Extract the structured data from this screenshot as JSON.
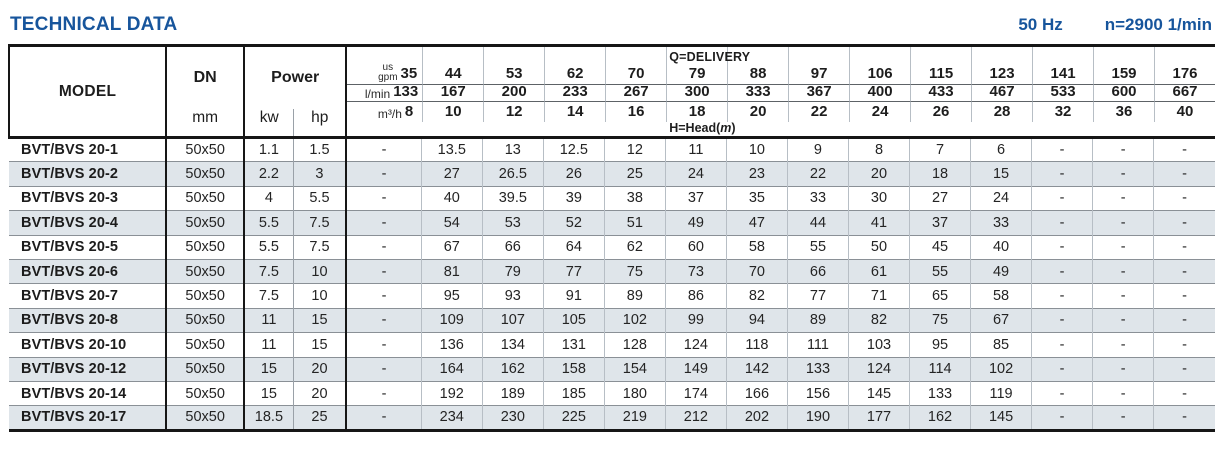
{
  "header_bar": {
    "title": "TECHNICAL DATA",
    "frequency": "50 Hz",
    "rotation_speed": "n=2900 1/min"
  },
  "colors": {
    "accent_blue": "#17559c",
    "row_alt_bg": "#dfe5ea",
    "border_dark": "#161616",
    "divider_light": "#b7bec5"
  },
  "table": {
    "column_headers": {
      "model": "MODEL",
      "dn": "DN",
      "dn_unit": "mm",
      "power": "Power",
      "power_units": [
        "kw",
        "hp"
      ],
      "delivery_label": "Q=DELIVERY",
      "head_label_prefix": "H=Head(",
      "head_label_unit": "m",
      "head_label_suffix": ")"
    },
    "delivery_units": [
      {
        "label_lines": [
          "us",
          "gpm"
        ],
        "values": [
          "35",
          "44",
          "53",
          "62",
          "70",
          "79",
          "88",
          "97",
          "106",
          "115",
          "123",
          "141",
          "159",
          "176"
        ]
      },
      {
        "label_lines": [
          "l/min"
        ],
        "values": [
          "133",
          "167",
          "200",
          "233",
          "267",
          "300",
          "333",
          "367",
          "400",
          "433",
          "467",
          "533",
          "600",
          "667"
        ]
      },
      {
        "label_lines": [
          "m³/h"
        ],
        "values": [
          "8",
          "10",
          "12",
          "14",
          "16",
          "18",
          "20",
          "22",
          "24",
          "26",
          "28",
          "32",
          "36",
          "40"
        ]
      }
    ],
    "rows": [
      {
        "model": "BVT/BVS 20-1",
        "dn": "50x50",
        "kw": "1.1",
        "hp": "1.5",
        "head_m": [
          "-",
          "13.5",
          "13",
          "12.5",
          "12",
          "11",
          "10",
          "9",
          "8",
          "7",
          "6",
          "-",
          "-",
          "-"
        ]
      },
      {
        "model": "BVT/BVS 20-2",
        "dn": "50x50",
        "kw": "2.2",
        "hp": "3",
        "head_m": [
          "-",
          "27",
          "26.5",
          "26",
          "25",
          "24",
          "23",
          "22",
          "20",
          "18",
          "15",
          "-",
          "-",
          "-"
        ]
      },
      {
        "model": "BVT/BVS 20-3",
        "dn": "50x50",
        "kw": "4",
        "hp": "5.5",
        "head_m": [
          "-",
          "40",
          "39.5",
          "39",
          "38",
          "37",
          "35",
          "33",
          "30",
          "27",
          "24",
          "-",
          "-",
          "-"
        ]
      },
      {
        "model": "BVT/BVS 20-4",
        "dn": "50x50",
        "kw": "5.5",
        "hp": "7.5",
        "head_m": [
          "-",
          "54",
          "53",
          "52",
          "51",
          "49",
          "47",
          "44",
          "41",
          "37",
          "33",
          "-",
          "-",
          "-"
        ]
      },
      {
        "model": "BVT/BVS 20-5",
        "dn": "50x50",
        "kw": "5.5",
        "hp": "7.5",
        "head_m": [
          "-",
          "67",
          "66",
          "64",
          "62",
          "60",
          "58",
          "55",
          "50",
          "45",
          "40",
          "-",
          "-",
          "-"
        ]
      },
      {
        "model": "BVT/BVS 20-6",
        "dn": "50x50",
        "kw": "7.5",
        "hp": "10",
        "head_m": [
          "-",
          "81",
          "79",
          "77",
          "75",
          "73",
          "70",
          "66",
          "61",
          "55",
          "49",
          "-",
          "-",
          "-"
        ]
      },
      {
        "model": "BVT/BVS 20-7",
        "dn": "50x50",
        "kw": "7.5",
        "hp": "10",
        "head_m": [
          "-",
          "95",
          "93",
          "91",
          "89",
          "86",
          "82",
          "77",
          "71",
          "65",
          "58",
          "-",
          "-",
          "-"
        ]
      },
      {
        "model": "BVT/BVS 20-8",
        "dn": "50x50",
        "kw": "11",
        "hp": "15",
        "head_m": [
          "-",
          "109",
          "107",
          "105",
          "102",
          "99",
          "94",
          "89",
          "82",
          "75",
          "67",
          "-",
          "-",
          "-"
        ]
      },
      {
        "model": "BVT/BVS 20-10",
        "dn": "50x50",
        "kw": "11",
        "hp": "15",
        "head_m": [
          "-",
          "136",
          "134",
          "131",
          "128",
          "124",
          "118",
          "111",
          "103",
          "95",
          "85",
          "-",
          "-",
          "-"
        ]
      },
      {
        "model": "BVT/BVS 20-12",
        "dn": "50x50",
        "kw": "15",
        "hp": "20",
        "head_m": [
          "-",
          "164",
          "162",
          "158",
          "154",
          "149",
          "142",
          "133",
          "124",
          "114",
          "102",
          "-",
          "-",
          "-"
        ]
      },
      {
        "model": "BVT/BVS 20-14",
        "dn": "50x50",
        "kw": "15",
        "hp": "20",
        "head_m": [
          "-",
          "192",
          "189",
          "185",
          "180",
          "174",
          "166",
          "156",
          "145",
          "133",
          "119",
          "-",
          "-",
          "-"
        ]
      },
      {
        "model": "BVT/BVS 20-17",
        "dn": "50x50",
        "kw": "18.5",
        "hp": "25",
        "head_m": [
          "-",
          "234",
          "230",
          "225",
          "219",
          "212",
          "202",
          "190",
          "177",
          "162",
          "145",
          "-",
          "-",
          "-"
        ]
      }
    ]
  }
}
